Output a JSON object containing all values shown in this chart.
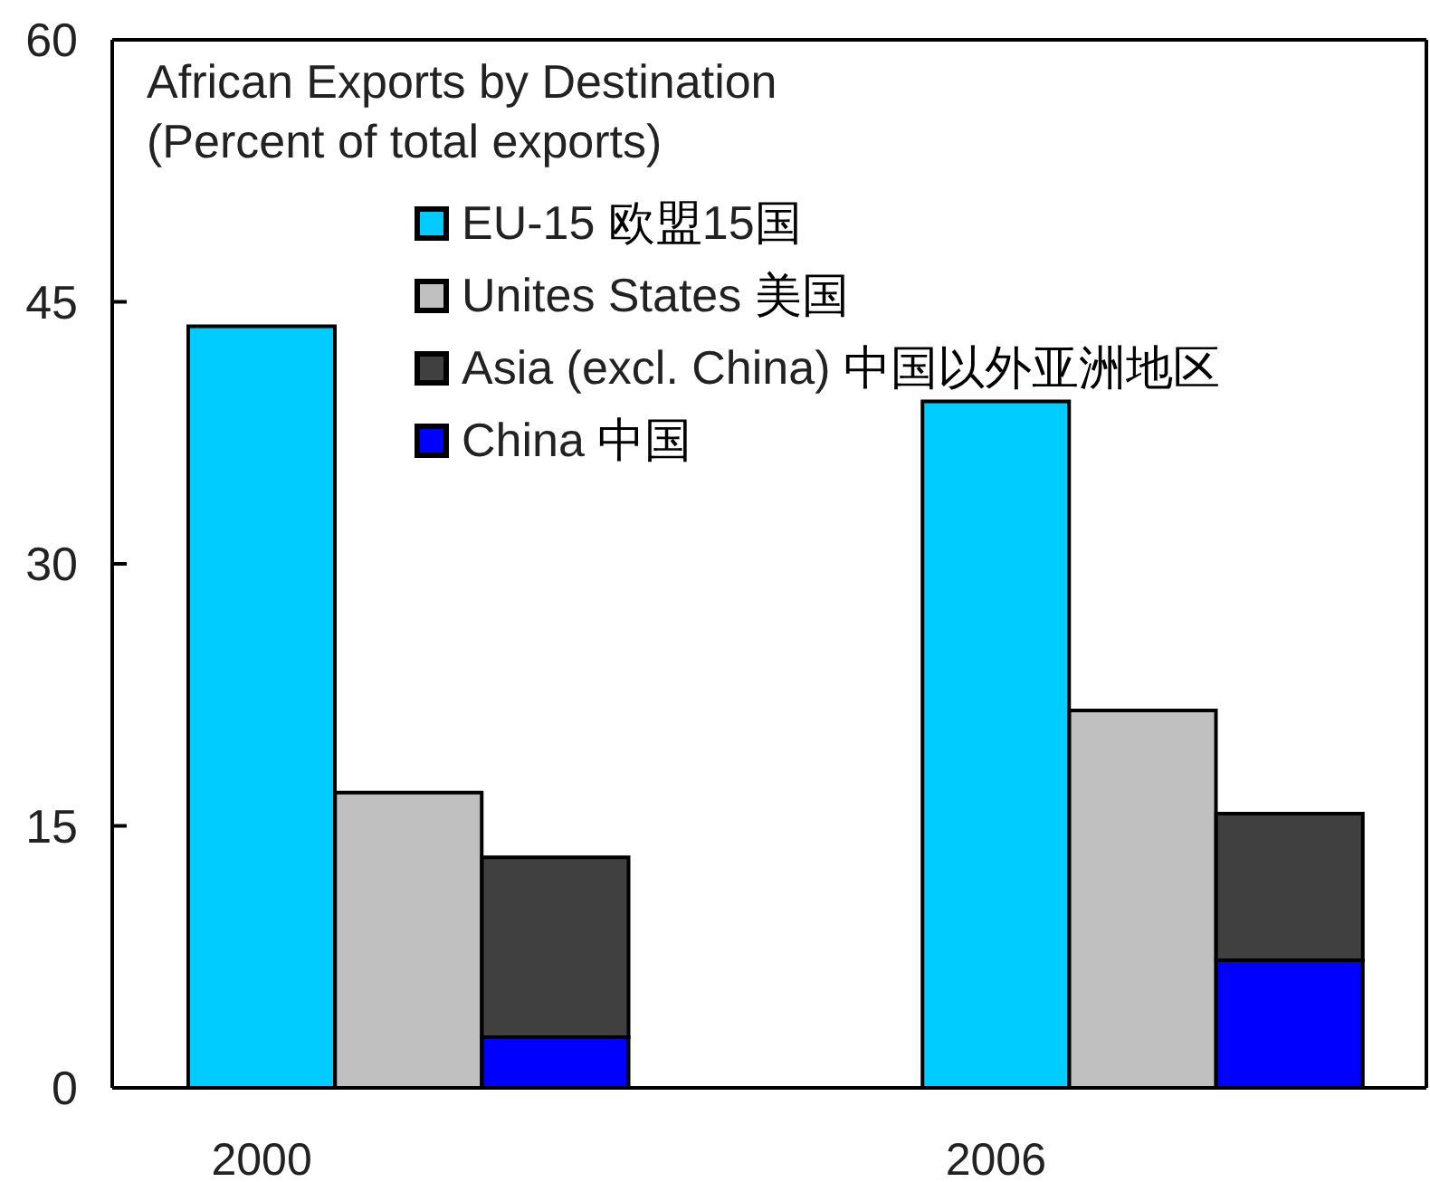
{
  "chart_data": {
    "type": "bar",
    "title": "African Exports by Destination",
    "subtitle": "(Percent of total exports)",
    "categories": [
      "2000",
      null,
      null,
      null,
      null,
      "2006",
      null,
      null
    ],
    "series": [
      {
        "name": "EU-15 欧盟15国",
        "color": "#00ccff",
        "values": [
          43.6,
          null,
          null,
          null,
          null,
          39.3,
          null,
          null
        ]
      },
      {
        "name": "Unites States 美国",
        "color": "#c0c0c0",
        "values": [
          null,
          16.9,
          null,
          null,
          null,
          null,
          21.6,
          null
        ]
      },
      {
        "name": "China 中国",
        "color": "#0000ff",
        "values": [
          null,
          null,
          2.9,
          null,
          null,
          null,
          null,
          7.3
        ]
      },
      {
        "name": "Asia (excl. China) 中国以外亚洲地区",
        "color": "#404040",
        "values": [
          null,
          null,
          10.3,
          null,
          null,
          null,
          null,
          8.4
        ]
      }
    ],
    "stacked": true,
    "ylim": [
      0,
      60
    ],
    "yticks": [
      0,
      15,
      30,
      45,
      60
    ],
    "legend": "top"
  }
}
